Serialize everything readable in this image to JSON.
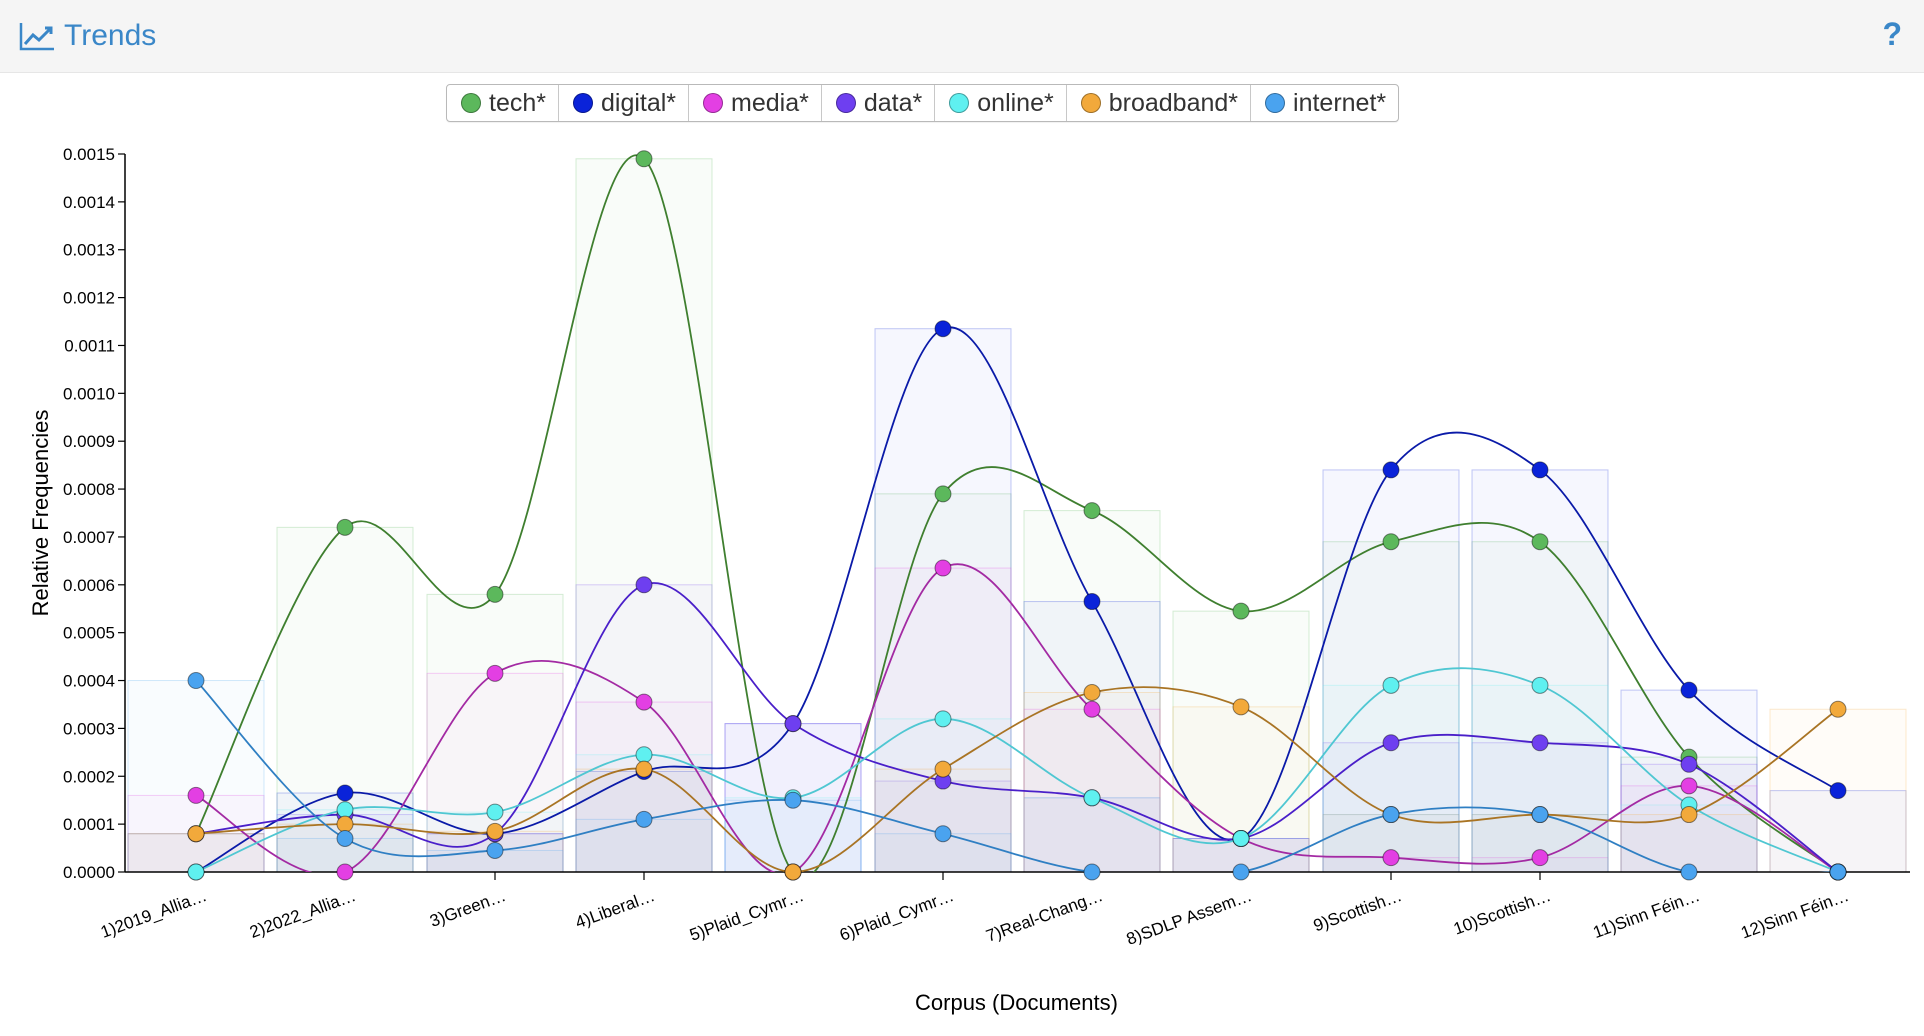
{
  "header": {
    "title": "Trends",
    "title_icon": "line-chart-icon",
    "help_label": "?",
    "accent_color": "#3a87c8"
  },
  "chart_data": {
    "type": "line",
    "xlabel": "Corpus (Documents)",
    "ylabel": "Relative Frequencies",
    "ylim": [
      0,
      0.0015
    ],
    "yticks": [
      "0.0000",
      "0.0001",
      "0.0002",
      "0.0003",
      "0.0004",
      "0.0005",
      "0.0006",
      "0.0007",
      "0.0008",
      "0.0009",
      "0.0010",
      "0.0011",
      "0.0012",
      "0.0013",
      "0.0014",
      "0.0015"
    ],
    "categories": [
      "1)2019_Allia…",
      "2)2022_Allia…",
      "3)Green…",
      "4)Liberal…",
      "5)Plaid_Cymr…",
      "6)Plaid_Cymr…",
      "7)Real-Chang…",
      "8)SDLP Assem…",
      "9)Scottish…",
      "10)Scottish…",
      "11)Sinn Féin…",
      "12)Sinn Féin…"
    ],
    "legend_position": "top-center",
    "series": [
      {
        "name": "tech*",
        "color": "#5cb85c",
        "line_color": "#3f7f2f",
        "values": [
          8e-05,
          0.00072,
          0.00058,
          0.00149,
          0.0,
          0.00079,
          0.000755,
          0.000545,
          0.00069,
          0.00069,
          0.00024,
          0.0
        ]
      },
      {
        "name": "digital*",
        "color": "#0a23d9",
        "line_color": "#0a1aa8",
        "values": [
          0.0,
          0.000165,
          8e-05,
          0.00021,
          0.00031,
          0.001135,
          0.000565,
          7e-05,
          0.00084,
          0.00084,
          0.00038,
          0.00017
        ]
      },
      {
        "name": "media*",
        "color": "#e33fe3",
        "line_color": "#a32aa3",
        "values": [
          0.00016,
          0.0,
          0.000415,
          0.000355,
          0.0,
          0.000635,
          0.00034,
          7e-05,
          3e-05,
          3e-05,
          0.00018,
          0.0
        ]
      },
      {
        "name": "data*",
        "color": "#6e3ff0",
        "line_color": "#4a1fc9",
        "values": [
          8e-05,
          0.00012,
          8e-05,
          0.0006,
          0.00031,
          0.00019,
          0.000155,
          7e-05,
          0.00027,
          0.00027,
          0.000225,
          0.0
        ]
      },
      {
        "name": "online*",
        "color": "#5ff0f0",
        "line_color": "#4fc7d2",
        "values": [
          0.0,
          0.00013,
          0.000125,
          0.000245,
          0.000155,
          0.00032,
          0.000155,
          7e-05,
          0.00039,
          0.00039,
          0.00014,
          0.0
        ]
      },
      {
        "name": "broadband*",
        "color": "#f2a93b",
        "line_color": "#a97424",
        "values": [
          8e-05,
          0.0001,
          8.5e-05,
          0.000215,
          0.0,
          0.000215,
          0.000375,
          0.000345,
          0.00012,
          0.00012,
          0.00012,
          0.00034
        ]
      },
      {
        "name": "internet*",
        "color": "#4aa3ef",
        "line_color": "#2f7fc3",
        "values": [
          0.0004,
          7e-05,
          4.5e-05,
          0.00011,
          0.00015,
          8e-05,
          0.0,
          0.0,
          0.00012,
          0.00012,
          0.0,
          0.0
        ]
      }
    ]
  }
}
